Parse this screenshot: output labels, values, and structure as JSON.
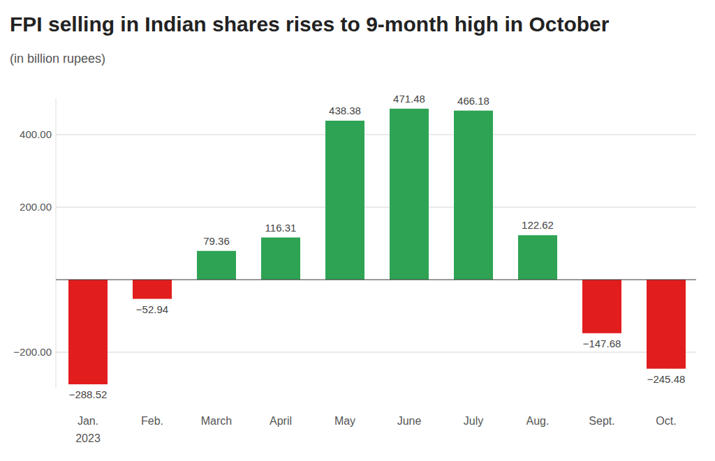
{
  "chart_data": {
    "type": "bar",
    "title": "FPI selling in Indian shares rises to 9-month high in October",
    "subtitle": "(in billion rupees)",
    "categories": [
      "Jan.\n2023",
      "Feb.",
      "March",
      "April",
      "May",
      "June",
      "July",
      "Aug.",
      "Sept.",
      "Oct."
    ],
    "values": [
      -288.52,
      -52.94,
      79.36,
      116.31,
      438.38,
      471.48,
      466.18,
      122.62,
      -147.68,
      -245.48
    ],
    "value_labels": [
      "−288.52",
      "−52.94",
      "79.36",
      "116.31",
      "438.38",
      "471.48",
      "466.18",
      "122.62",
      "−147.68",
      "−245.48"
    ],
    "colors": [
      "#e21d1d",
      "#e21d1d",
      "#2ea354",
      "#2ea354",
      "#2ea354",
      "#2ea354",
      "#2ea354",
      "#2ea354",
      "#e21d1d",
      "#e21d1d"
    ],
    "ylim": [
      -300,
      500
    ],
    "yticks": [
      {
        "value": 400,
        "label": "400.00"
      },
      {
        "value": 200,
        "label": "200.00"
      },
      {
        "value": -200,
        "label": "−200.00"
      }
    ],
    "grid": true,
    "data_labels": true
  }
}
